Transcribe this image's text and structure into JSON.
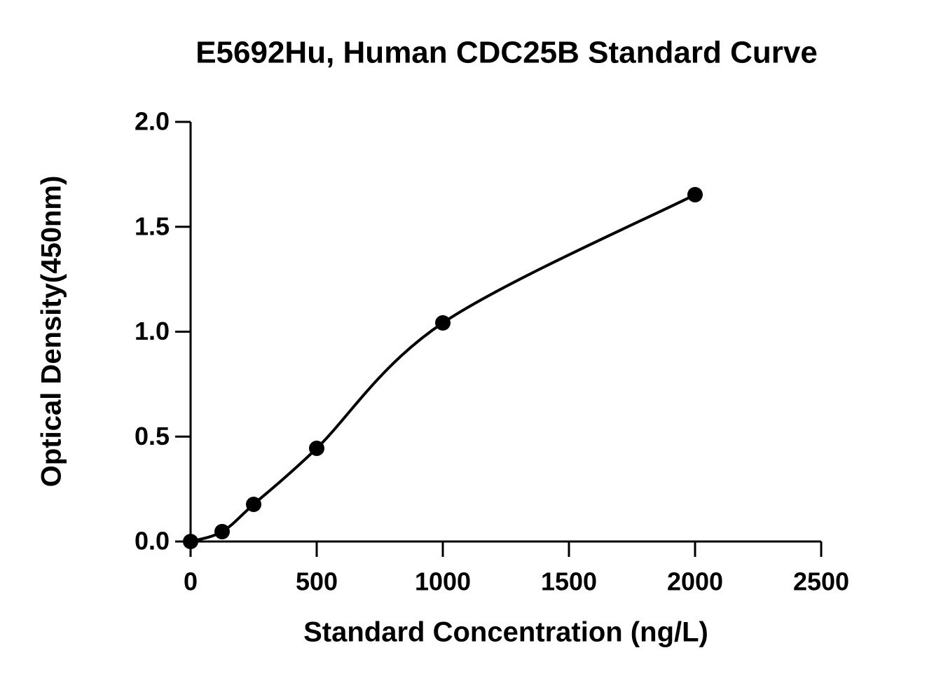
{
  "chart_data": {
    "type": "scatter",
    "title": "E5692Hu, Human CDC25B Standard Curve",
    "x_label": "Standard Concentration (ng/L)",
    "y_label": "Optical Density(450nm)",
    "x": [
      0,
      125,
      250,
      500,
      1000,
      2000
    ],
    "series": [
      {
        "color": "#000000",
        "values": [
          0,
          0.047,
          0.177,
          0.444,
          1.042,
          1.653
        ]
      }
    ],
    "curve": "smooth",
    "xlim": [
      0,
      2500
    ],
    "xticks": [
      0,
      500,
      1000,
      1500,
      2000,
      2500
    ],
    "ylim": [
      0,
      2.0
    ],
    "yticks": [
      {
        "value": 0,
        "label": "0.0"
      },
      0.5,
      {
        "value": 1,
        "label": "1.0"
      },
      1.5,
      {
        "value": 2,
        "label": "2.0"
      }
    ],
    "grid": false
  }
}
